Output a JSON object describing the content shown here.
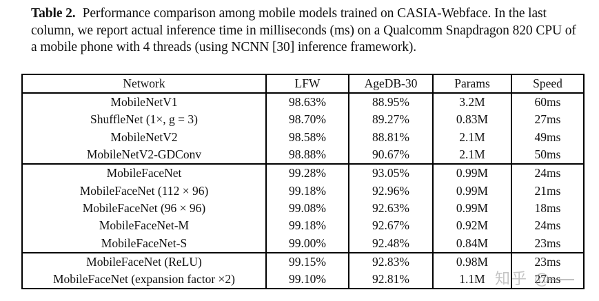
{
  "caption": {
    "label": "Table 2.",
    "text": "Performance comparison among mobile models trained on CASIA-Webface. In the last column, we report actual inference time in milliseconds (ms) on a Qualcomm Snapdragon 820 CPU of a mobile phone with 4 threads (using NCNN [30] inference framework)."
  },
  "table": {
    "headers": [
      "Network",
      "LFW",
      "AgeDB-30",
      "Params",
      "Speed"
    ],
    "groups": [
      [
        {
          "network": "MobileNetV1",
          "lfw": "98.63%",
          "agedb": "88.95%",
          "params": "3.2M",
          "speed": "60ms"
        },
        {
          "network": "ShuffleNet (1×, g = 3)",
          "lfw": "98.70%",
          "agedb": "89.27%",
          "params": "0.83M",
          "speed": "27ms"
        },
        {
          "network": "MobileNetV2",
          "lfw": "98.58%",
          "agedb": "88.81%",
          "params": "2.1M",
          "speed": "49ms"
        },
        {
          "network": "MobileNetV2-GDConv",
          "lfw": "98.88%",
          "agedb": "90.67%",
          "params": "2.1M",
          "speed": "50ms"
        }
      ],
      [
        {
          "network": "MobileFaceNet",
          "lfw": "99.28%",
          "agedb": "93.05%",
          "params": "0.99M",
          "speed": "24ms"
        },
        {
          "network": "MobileFaceNet (112 × 96)",
          "lfw": "99.18%",
          "agedb": "92.96%",
          "params": "0.99M",
          "speed": "21ms"
        },
        {
          "network": "MobileFaceNet (96 × 96)",
          "lfw": "99.08%",
          "agedb": "92.63%",
          "params": "0.99M",
          "speed": "18ms"
        },
        {
          "network": "MobileFaceNet-M",
          "lfw": "99.18%",
          "agedb": "92.67%",
          "params": "0.92M",
          "speed": "24ms"
        },
        {
          "network": "MobileFaceNet-S",
          "lfw": "99.00%",
          "agedb": "92.48%",
          "params": "0.84M",
          "speed": "23ms"
        }
      ],
      [
        {
          "network": "MobileFaceNet (ReLU)",
          "lfw": "99.15%",
          "agedb": "92.83%",
          "params": "0.98M",
          "speed": "23ms"
        },
        {
          "network": "MobileFaceNet (expansion factor ×2)",
          "lfw": "99.10%",
          "agedb": "92.81%",
          "params": "1.1M",
          "speed": "27ms"
        }
      ]
    ],
    "bold_cells": [
      "ShuffleNet.params",
      "MobileFaceNet.all",
      "MobileFaceNet-96.speed",
      "MobileFaceNet-S.params"
    ]
  },
  "watermark": {
    "text": "知乎 @"
  }
}
